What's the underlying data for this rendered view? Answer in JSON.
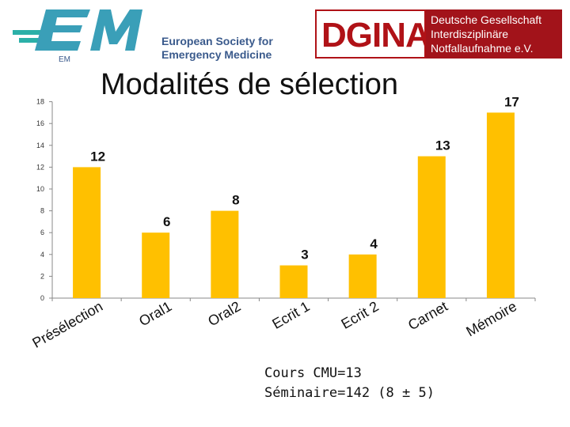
{
  "logos": {
    "eusem_mark": "EM",
    "eusem_line1": "European Society for",
    "eusem_line2": "Emergency Medicine",
    "dgina_word": "DGINA",
    "dgina_line1": "Deutsche Gesellschaft",
    "dgina_line2": "Interdisziplinäre",
    "dgina_line3": "Notfallaufnahme e.V."
  },
  "colors": {
    "bar": "#FFC000",
    "axis": "#888888",
    "eusem_blue": "#3a5a8c",
    "eusem_teal": "#2bb0a8",
    "dgina_red": "#b01217"
  },
  "chart_data": {
    "type": "bar",
    "title": "Modalités de sélection",
    "categories": [
      "Présélection",
      "Oral1",
      "Oral2",
      "Ecrit 1",
      "Ecrit 2",
      "Carnet",
      "Mémoire"
    ],
    "values": [
      12,
      6,
      8,
      3,
      4,
      13,
      17
    ],
    "data_labels": [
      "12",
      "6",
      "8",
      "3",
      "4",
      "13",
      "17"
    ],
    "y_ticks": [
      0,
      2,
      4,
      6,
      8,
      10,
      12,
      14,
      16,
      18
    ],
    "ylim": [
      0,
      18
    ],
    "xlabel": "",
    "ylabel": "",
    "grid": false
  },
  "footnote": {
    "line1": "Cours CMU=13",
    "line2": "Séminaire=142 (8 ± 5)"
  }
}
